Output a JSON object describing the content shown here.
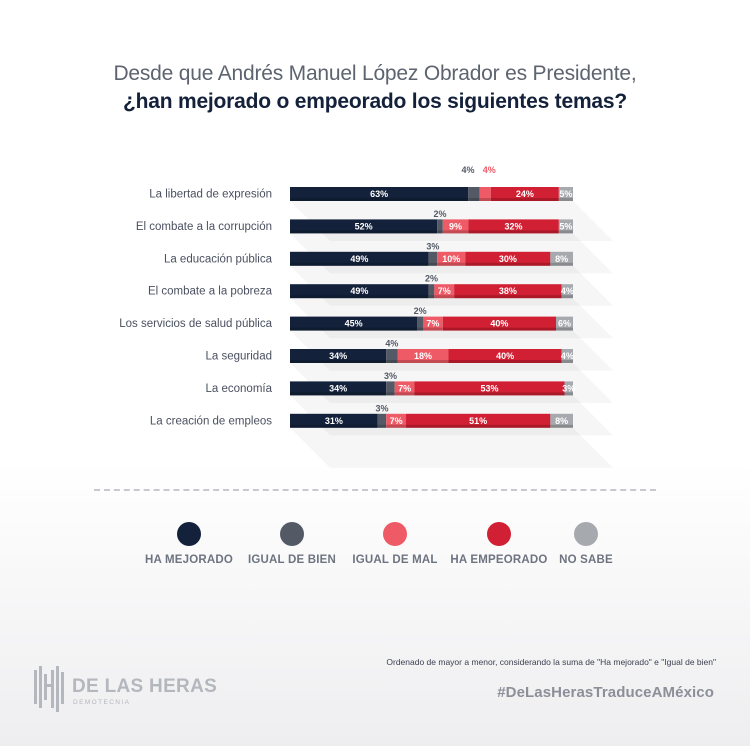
{
  "title": {
    "line1": "Desde que Andrés Manuel López Obrador es Presidente,",
    "line2": "¿han mejorado o empeorado los siguientes temas?"
  },
  "colors": {
    "ha_mejorado": "#13213a",
    "igual_de_bien": "#535a66",
    "igual_de_mal": "#ee5a66",
    "ha_empeorado": "#d11f33",
    "no_sabe": "#a6a9ae"
  },
  "chart_data": {
    "type": "bar",
    "orientation": "horizontal",
    "stacked": true,
    "categories": [
      "La libertad de expresión",
      "El combate a la corrupción",
      "La educación pública",
      "El combate a la pobreza",
      "Los servicios de salud pública",
      "La seguridad",
      "La economía",
      "La creación de empleos"
    ],
    "series": [
      {
        "name": "HA MEJORADO",
        "color": "#13213a",
        "values": [
          63,
          52,
          49,
          49,
          45,
          34,
          34,
          31
        ]
      },
      {
        "name": "IGUAL DE BIEN",
        "color": "#535a66",
        "values": [
          4,
          2,
          3,
          2,
          2,
          4,
          3,
          3
        ]
      },
      {
        "name": "IGUAL DE MAL",
        "color": "#ee5a66",
        "values": [
          4,
          9,
          10,
          7,
          7,
          18,
          7,
          7
        ]
      },
      {
        "name": "HA EMPEORADO",
        "color": "#d11f33",
        "values": [
          24,
          32,
          30,
          38,
          40,
          40,
          53,
          51
        ]
      },
      {
        "name": "NO SABE",
        "color": "#a6a9ae",
        "values": [
          5,
          5,
          8,
          4,
          6,
          4,
          3,
          8
        ]
      }
    ],
    "unit": "%"
  },
  "legend": [
    {
      "label": "HA MEJORADO",
      "color": "#13213a"
    },
    {
      "label": "IGUAL DE BIEN",
      "color": "#535a66"
    },
    {
      "label": "IGUAL DE MAL",
      "color": "#ee5a66"
    },
    {
      "label": "HA EMPEORADO",
      "color": "#d11f33"
    },
    {
      "label": "NO SABE",
      "color": "#a6a9ae"
    }
  ],
  "footnote": "Ordenado de mayor a menor, considerando la suma de \"Ha mejorado\" e \"Igual de bien\"",
  "hashtag": "#DeLasHerasTraduceAMéxico",
  "logo": {
    "name": "DE LAS HERAS",
    "subtitle": "DEMOTECNIA"
  }
}
